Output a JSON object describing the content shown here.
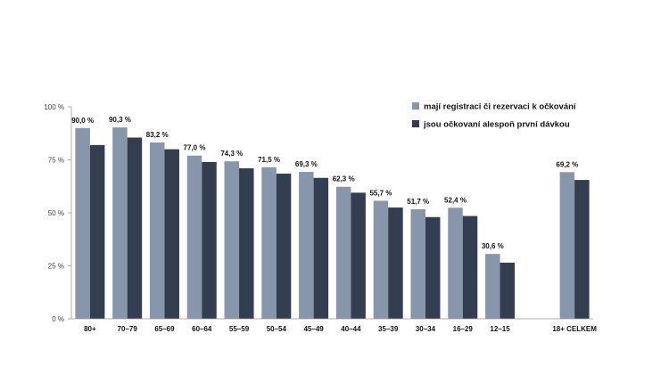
{
  "chart_data": {
    "type": "bar",
    "categories": [
      "80+",
      "70–79",
      "65–69",
      "60–64",
      "55–59",
      "50–54",
      "45–49",
      "40–44",
      "35–39",
      "30–34",
      "16–29",
      "12–15",
      "",
      "18+ CELKEM"
    ],
    "series": [
      {
        "name": "mají registraci či rezervaci k očkování",
        "color": "#8896ab",
        "values": [
          90.0,
          90.3,
          83.2,
          77.0,
          74.3,
          71.5,
          69.3,
          62.3,
          55.7,
          51.7,
          52.4,
          30.6,
          null,
          69.2
        ],
        "labels": [
          "90,0 %",
          "90,3 %",
          "83,2 %",
          "77,0 %",
          "74,3 %",
          "71,5 %",
          "69,3 %",
          "62,3 %",
          "55,7 %",
          "51,7 %",
          "52,4 %",
          "30,6 %",
          "",
          "69,2 %"
        ]
      },
      {
        "name": "jsou očkovaní alespoň první dávkou",
        "color": "#333f50",
        "values": [
          82,
          85.5,
          80,
          74,
          71,
          68.5,
          66.5,
          59.5,
          52.5,
          48,
          48.5,
          26.5,
          null,
          65.5
        ]
      }
    ],
    "ylim": [
      0,
      100
    ],
    "yticks": [
      0,
      25,
      50,
      75,
      100
    ],
    "ytick_labels": [
      "0 %",
      "25 %",
      "50 %",
      "75 %",
      "100 %"
    ],
    "legend_position": "top-right",
    "grid": false
  }
}
